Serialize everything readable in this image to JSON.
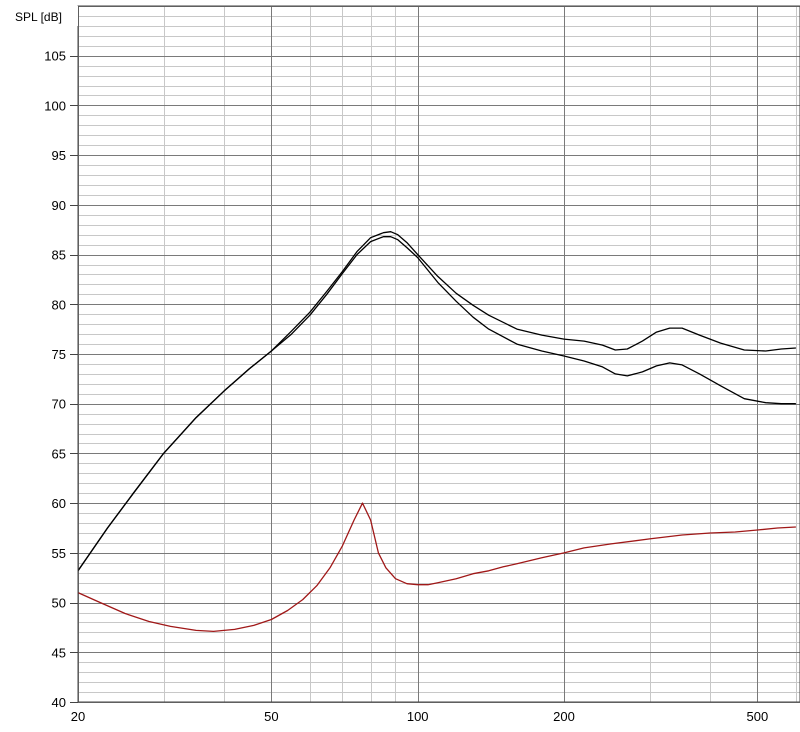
{
  "chart_data": {
    "type": "line",
    "ylabel": "SPL [dB]",
    "xlabel": "",
    "xscale": "log",
    "xlim": [
      20,
      600
    ],
    "ylim": [
      40,
      110
    ],
    "grid": true,
    "x_ticks": [
      20,
      50,
      100,
      200,
      500
    ],
    "y_ticks": [
      40,
      45,
      50,
      55,
      60,
      65,
      70,
      75,
      80,
      85,
      90,
      95,
      100,
      105
    ],
    "colors": {
      "upper": "#000000",
      "lower": "#000000",
      "bottom": "#a01818",
      "grid_major": "#7a7a7a",
      "grid_minor": "#c8c8c8"
    },
    "series": [
      {
        "id": "upper",
        "x": [
          20,
          23,
          26,
          30,
          35,
          40,
          45,
          50,
          55,
          60,
          65,
          70,
          75,
          80,
          85,
          88,
          91,
          95,
          100,
          110,
          120,
          130,
          140,
          160,
          180,
          200,
          220,
          240,
          255,
          270,
          290,
          310,
          330,
          350,
          380,
          420,
          470,
          520,
          560,
          600
        ],
        "y": [
          53.2,
          57.5,
          61.0,
          65.0,
          68.6,
          71.3,
          73.5,
          75.3,
          77.3,
          79.2,
          81.3,
          83.3,
          85.3,
          86.7,
          87.2,
          87.3,
          87.0,
          86.2,
          85.0,
          82.8,
          81.1,
          79.9,
          78.9,
          77.5,
          76.9,
          76.5,
          76.3,
          75.9,
          75.4,
          75.5,
          76.3,
          77.2,
          77.6,
          77.6,
          76.9,
          76.1,
          75.4,
          75.3,
          75.5,
          75.6
        ]
      },
      {
        "id": "lower",
        "x": [
          20,
          23,
          26,
          30,
          35,
          40,
          45,
          50,
          55,
          60,
          65,
          70,
          75,
          80,
          85,
          88,
          91,
          95,
          100,
          110,
          120,
          130,
          140,
          160,
          180,
          200,
          220,
          240,
          255,
          270,
          290,
          310,
          330,
          350,
          380,
          420,
          470,
          520,
          560,
          600
        ],
        "y": [
          53.2,
          57.5,
          61.0,
          65.0,
          68.6,
          71.3,
          73.5,
          75.3,
          77.0,
          78.9,
          81.0,
          83.1,
          85.0,
          86.3,
          86.8,
          86.8,
          86.5,
          85.7,
          84.7,
          82.2,
          80.3,
          78.7,
          77.5,
          76.0,
          75.3,
          74.8,
          74.3,
          73.7,
          73.0,
          72.8,
          73.2,
          73.8,
          74.1,
          73.9,
          73.0,
          71.8,
          70.5,
          70.1,
          70.0,
          70.0
        ]
      },
      {
        "id": "bottom",
        "x": [
          20,
          22,
          25,
          28,
          31,
          35,
          38,
          42,
          46,
          50,
          54,
          58,
          62,
          66,
          70,
          74,
          77,
          80,
          83,
          86,
          90,
          95,
          100,
          105,
          110,
          120,
          130,
          140,
          150,
          160,
          180,
          200,
          220,
          250,
          300,
          350,
          400,
          450,
          500,
          550,
          600
        ],
        "y": [
          51.0,
          50.1,
          48.9,
          48.1,
          47.6,
          47.2,
          47.1,
          47.3,
          47.7,
          48.3,
          49.2,
          50.3,
          51.7,
          53.5,
          55.7,
          58.3,
          60.0,
          58.3,
          55.0,
          53.5,
          52.4,
          51.9,
          51.8,
          51.8,
          52.0,
          52.4,
          52.9,
          53.2,
          53.6,
          53.9,
          54.5,
          55.0,
          55.5,
          55.9,
          56.4,
          56.8,
          57.0,
          57.1,
          57.3,
          57.5,
          57.6
        ]
      }
    ]
  }
}
